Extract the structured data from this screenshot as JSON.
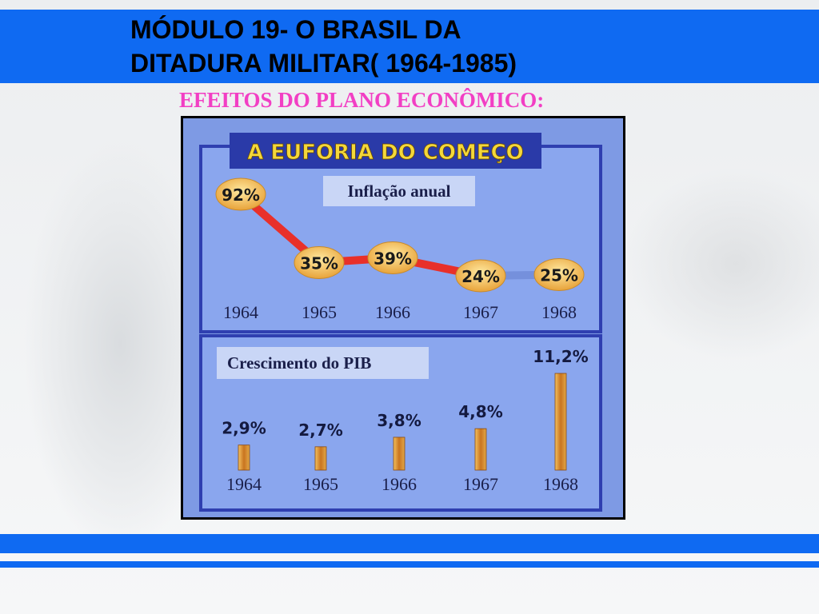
{
  "slide": {
    "title_line1": "MÓDULO 19- O BRASIL DA",
    "title_line2": "DITADURA MILITAR( 1964-1985)",
    "subtitle": "EFEITOS DO PLANO ECONÔMICO:"
  },
  "colors": {
    "header_blue": "#0f6af2",
    "subtitle_pink": "#f23fc4",
    "chart_bg": "#7e9ae4",
    "inflation_line": "#e8302a",
    "bar_gold": "#d9932e"
  },
  "chart_data": [
    {
      "type": "line",
      "title": "A EUFORIA DO COMEÇO",
      "subtitle": "Inflação anual",
      "categories": [
        "1964",
        "1965",
        "1966",
        "1967",
        "1968"
      ],
      "values": [
        92,
        35,
        39,
        24,
        25
      ],
      "labels": [
        "92%",
        "35%",
        "39%",
        "24%",
        "25%"
      ],
      "unit": "%"
    },
    {
      "type": "bar",
      "subtitle": "Crescimento do PIB",
      "categories": [
        "1964",
        "1965",
        "1966",
        "1967",
        "1968"
      ],
      "values": [
        2.9,
        2.7,
        3.8,
        4.8,
        11.2
      ],
      "labels": [
        "2,9%",
        "2,7%",
        "3,8%",
        "4,8%",
        "11,2%"
      ],
      "unit": "%"
    }
  ]
}
